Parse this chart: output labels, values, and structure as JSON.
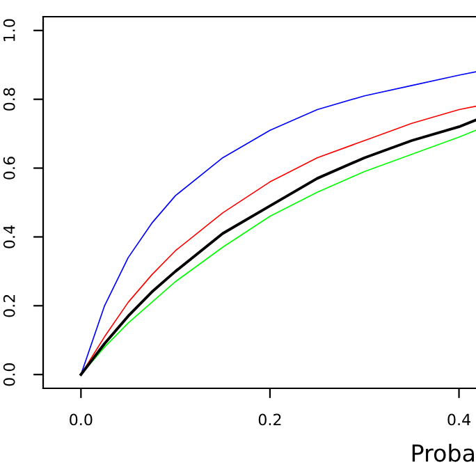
{
  "chart_data": {
    "type": "line",
    "xlabel": "Proba",
    "x": [
      0,
      0.025,
      0.05,
      0.075,
      0.1,
      0.15,
      0.2,
      0.25,
      0.3,
      0.35,
      0.4,
      0.418
    ],
    "series": [
      {
        "color": "#0000ff",
        "values": [
          0,
          0.2,
          0.34,
          0.44,
          0.52,
          0.63,
          0.71,
          0.77,
          0.81,
          0.84,
          0.87,
          0.88
        ]
      },
      {
        "color": "#ff0000",
        "values": [
          0,
          0.11,
          0.21,
          0.29,
          0.36,
          0.47,
          0.56,
          0.63,
          0.68,
          0.73,
          0.77,
          0.78
        ]
      },
      {
        "color": "#00ff00",
        "values": [
          0,
          0.08,
          0.15,
          0.21,
          0.27,
          0.37,
          0.46,
          0.53,
          0.59,
          0.64,
          0.69,
          0.71
        ]
      },
      {
        "color": "#000000",
        "values": [
          0,
          0.09,
          0.17,
          0.24,
          0.3,
          0.41,
          0.49,
          0.57,
          0.63,
          0.68,
          0.72,
          0.74
        ]
      }
    ],
    "xlim": [
      -0.04,
      0.418
    ],
    "ylim": [
      -0.04,
      1.04
    ],
    "xticks": [
      {
        "value": 0,
        "label": "0.0"
      },
      {
        "value": 0.2,
        "label": "0.2"
      },
      {
        "value": 0.4,
        "label": "0.4"
      }
    ],
    "yticks": [
      {
        "value": 0,
        "label": "0.0"
      },
      {
        "value": 0.2,
        "label": "0.2"
      },
      {
        "value": 0.4,
        "label": "0.4"
      },
      {
        "value": 0.6,
        "label": "0.6"
      },
      {
        "value": 0.8,
        "label": "0.8"
      },
      {
        "value": 1,
        "label": "1.0"
      }
    ],
    "grid": false,
    "legend": false,
    "marker": "none",
    "line_style": "solid"
  }
}
